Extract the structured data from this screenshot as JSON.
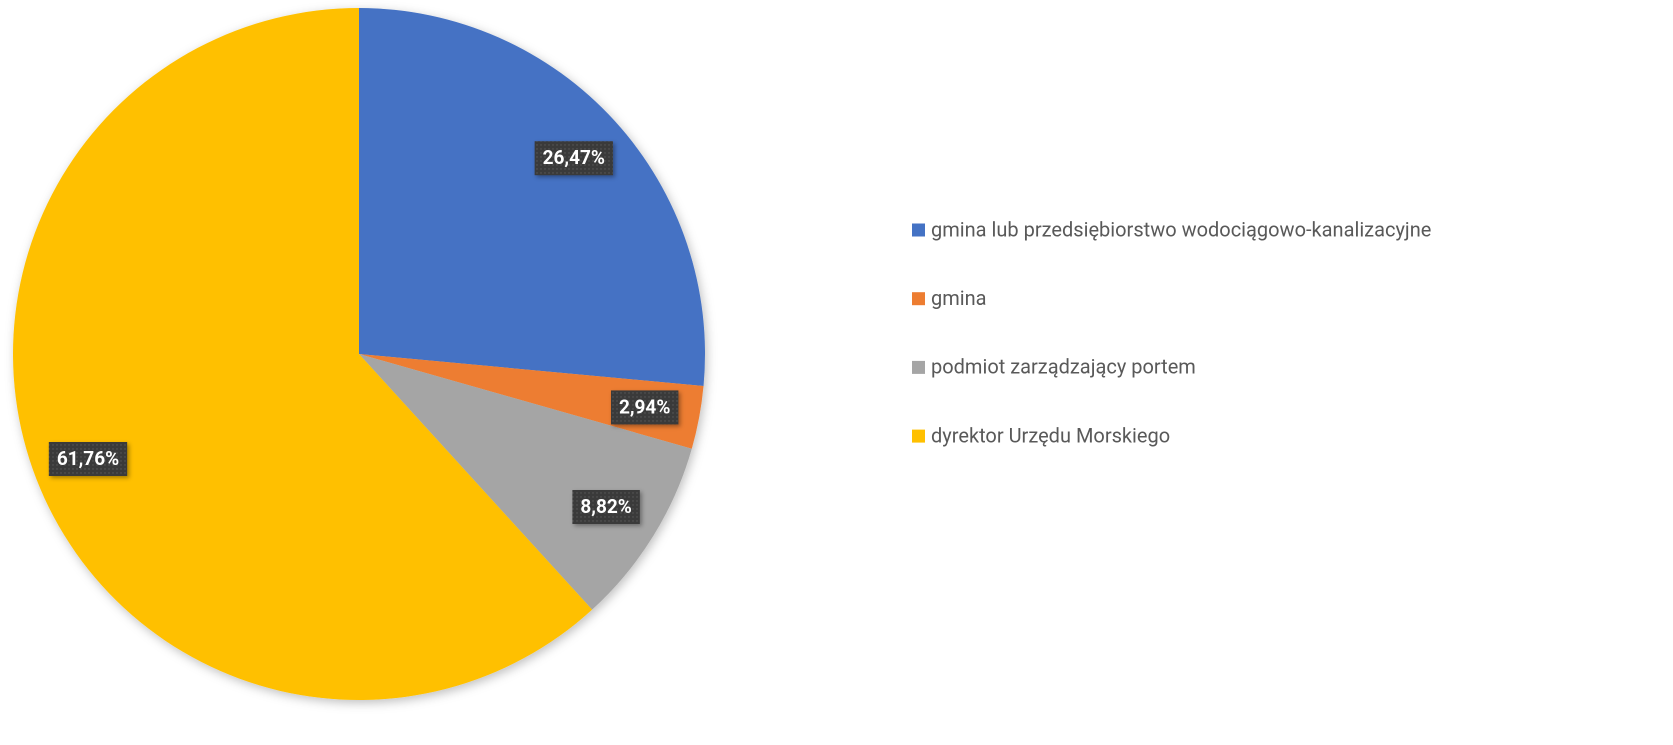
{
  "chart_data": {
    "type": "pie",
    "categories": [
      "gmina lub przedsiębiorstwo wodociągowo-kanalizacyjne",
      "gmina",
      "podmiot zarządzający portem",
      "dyrektor Urzędu Morskiego"
    ],
    "values": [
      26.47,
      2.94,
      8.82,
      61.76
    ],
    "value_labels": [
      "26,47%",
      "2,94%",
      "8,82%",
      "61,76%"
    ],
    "colors": [
      "#4472c4",
      "#ed7d31",
      "#a5a5a5",
      "#ffc000"
    ],
    "legend": "right"
  }
}
